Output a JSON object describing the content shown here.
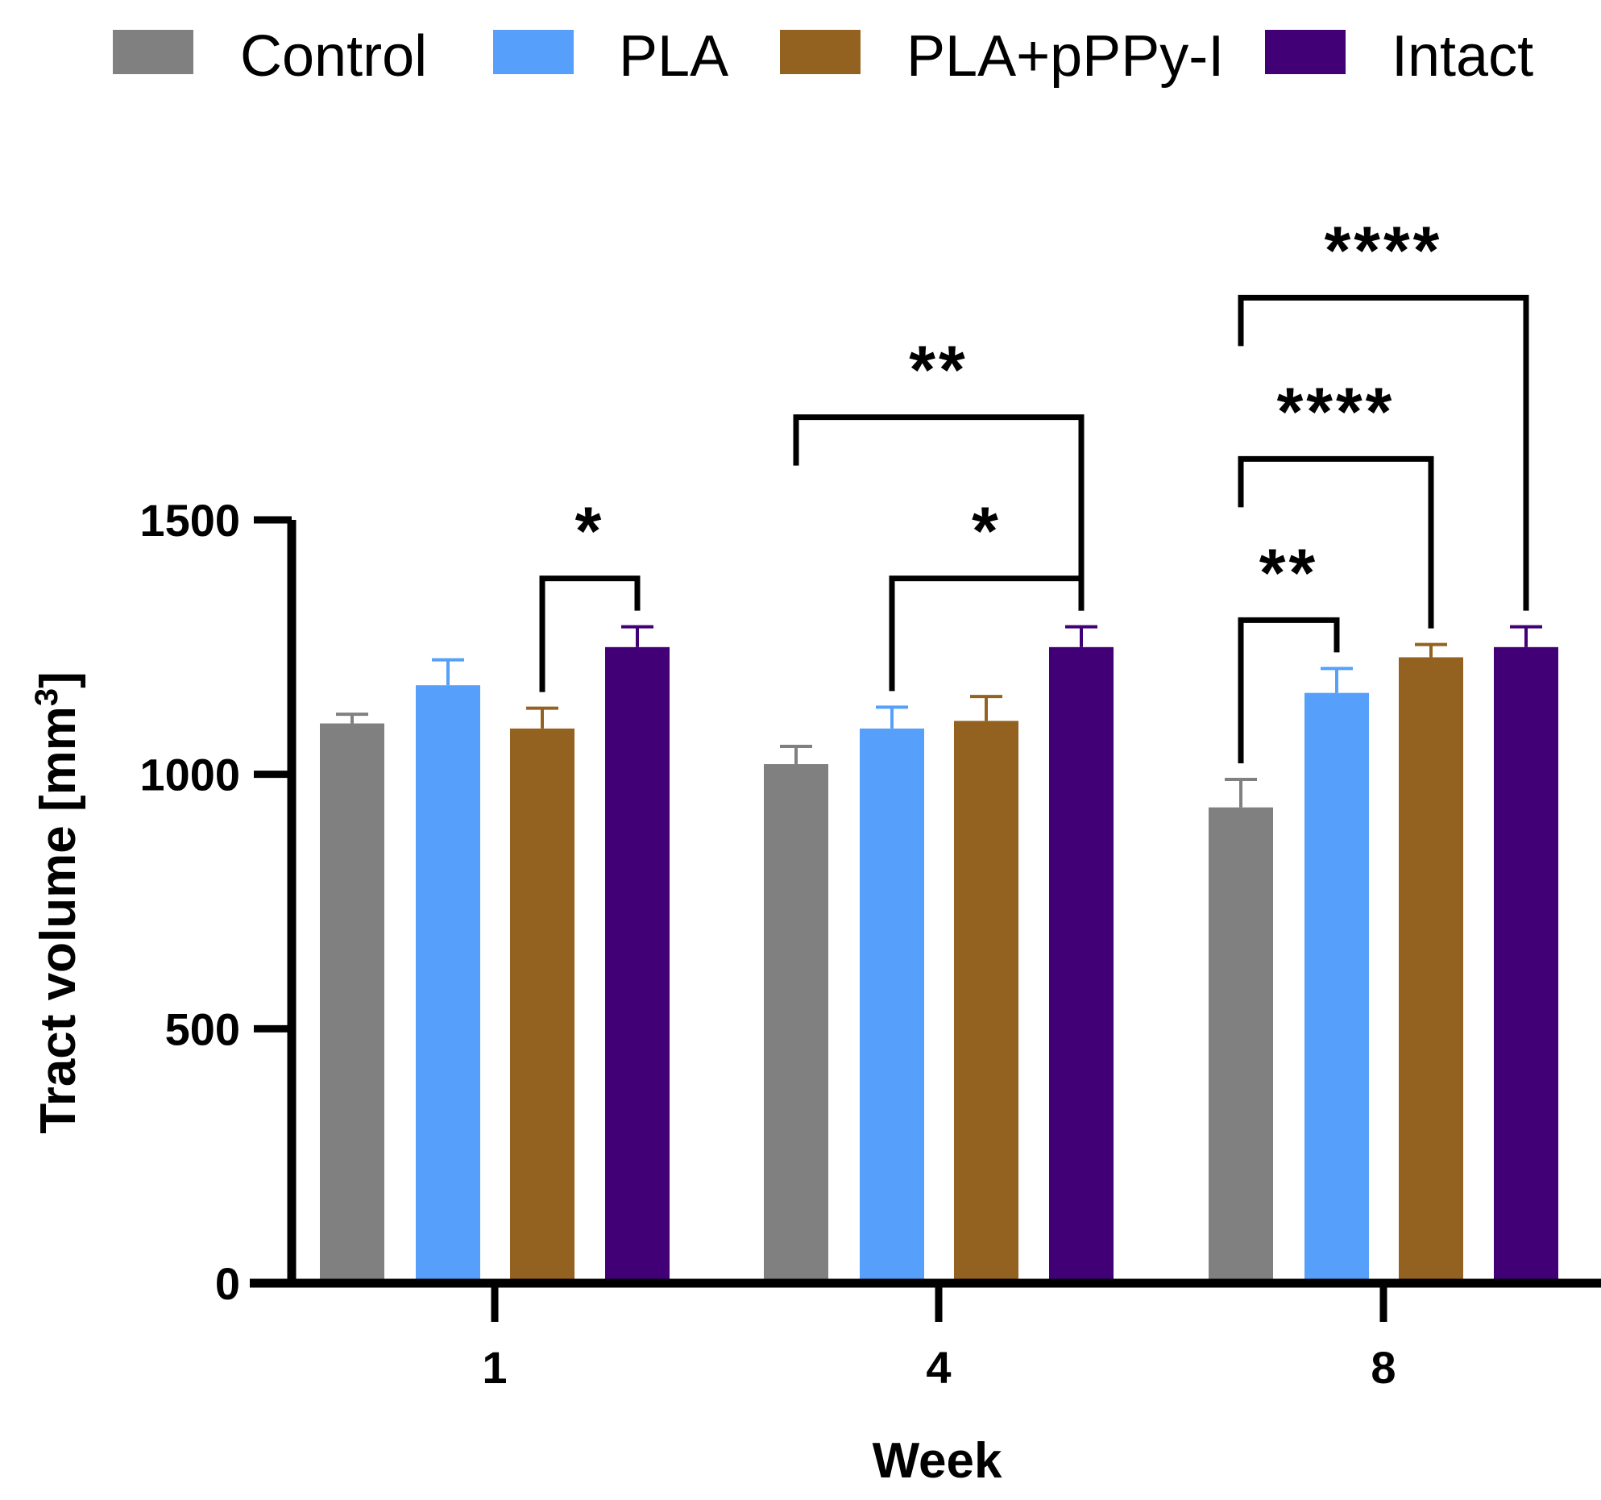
{
  "chart_data": {
    "type": "bar",
    "title": "",
    "xlabel": "Week",
    "ylabel_main": "Tract volume [mm",
    "ylabel_sup": "3",
    "ylabel_close": "]",
    "ylabel": "Tract volume [mm3]",
    "categories": [
      "1",
      "4",
      "8"
    ],
    "ylim": [
      0,
      1500
    ],
    "yticks": [
      0,
      500,
      1000,
      1500
    ],
    "ytick_labels": [
      "0",
      "500",
      "1000",
      "1500"
    ],
    "legend_position": "top",
    "series": [
      {
        "name": "Control",
        "color": "#808080",
        "values": [
          1100,
          1020,
          935
        ],
        "errors": [
          18,
          35,
          55
        ]
      },
      {
        "name": "PLA",
        "color": "#56a0fc",
        "values": [
          1175,
          1090,
          1160
        ],
        "errors": [
          50,
          42,
          48
        ]
      },
      {
        "name": "PLA+pPPy-I",
        "color": "#946220",
        "values": [
          1090,
          1105,
          1230
        ],
        "errors": [
          40,
          48,
          25
        ]
      },
      {
        "name": "Intact",
        "color": "#410075",
        "values": [
          1250,
          1250,
          1250
        ],
        "errors": [
          40,
          40,
          40
        ]
      }
    ],
    "significance": [
      {
        "group": 0,
        "from": 2,
        "to": 3,
        "label": "*"
      },
      {
        "group": 1,
        "from": 1,
        "to": 3,
        "label": "*"
      },
      {
        "group": 1,
        "from": 0,
        "to": 3,
        "label": "**"
      },
      {
        "group": 2,
        "from": 0,
        "to": 1,
        "label": "**"
      },
      {
        "group": 2,
        "from": 0,
        "to": 2,
        "label": "****"
      },
      {
        "group": 2,
        "from": 0,
        "to": 3,
        "label": "****"
      }
    ]
  }
}
